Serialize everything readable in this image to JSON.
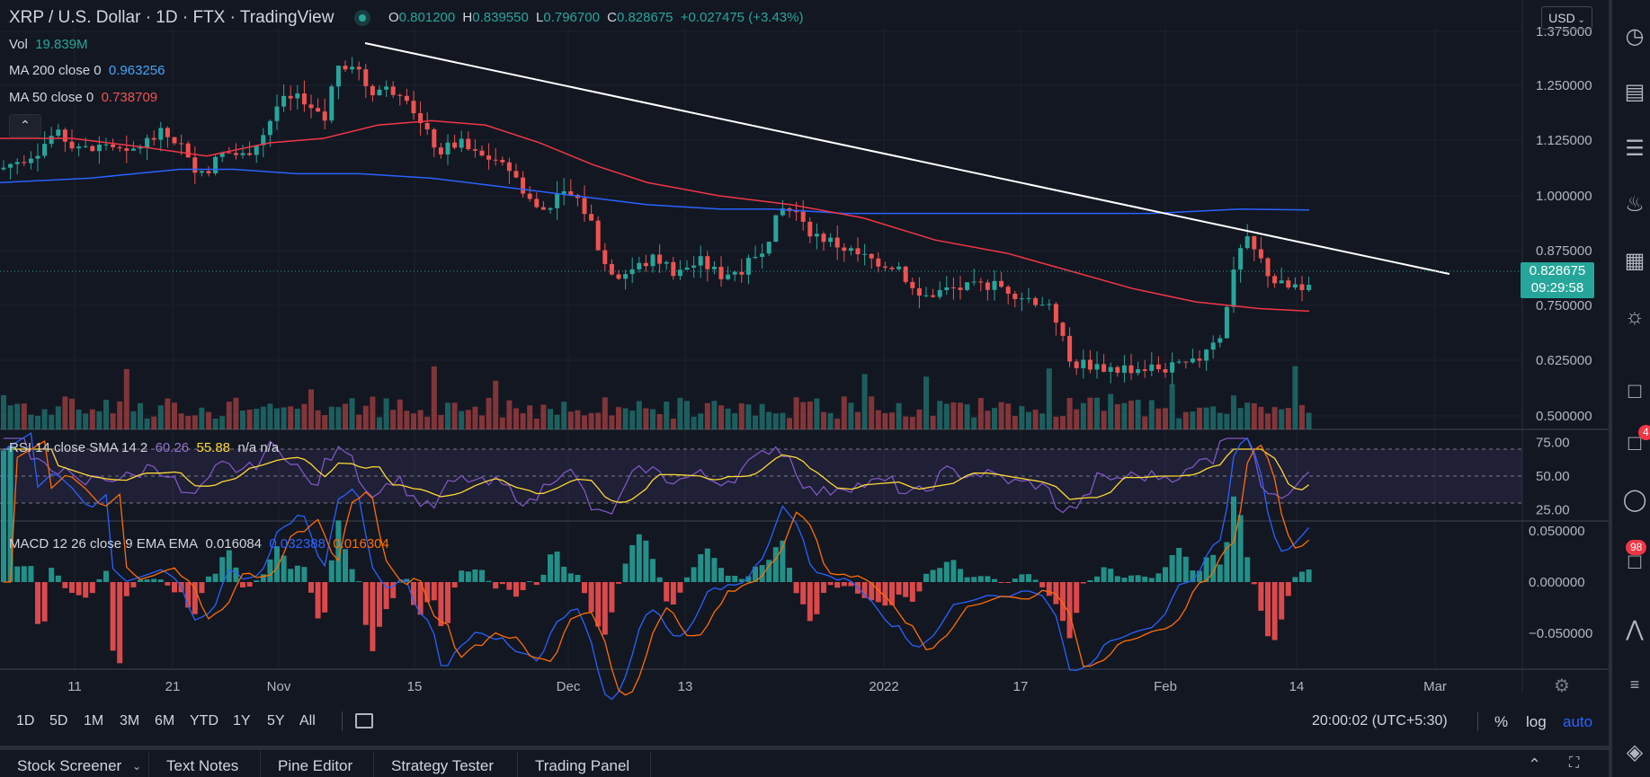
{
  "header": {
    "symbol_title": "XRP / U.S. Dollar · 1D · FTX · TradingView",
    "ohlc": {
      "o_label": "O",
      "o": "0.801200",
      "h_label": "H",
      "h": "0.839550",
      "l_label": "L",
      "l": "0.796700",
      "c_label": "C",
      "c": "0.828675",
      "change": "+0.027475 (+3.43%)"
    },
    "currency": "USD",
    "status_color": "#26a69a"
  },
  "legend": {
    "vol_label": "Vol",
    "vol_value": "19.839M",
    "ma200_label": "MA 200 close 0",
    "ma200_value": "0.963256",
    "ma200_color": "#2962ff",
    "ma50_label": "MA 50 close 0",
    "ma50_value": "0.738709",
    "ma50_color": "#f23645",
    "rsi_label": "RSI 14 close SMA 14 2",
    "rsi_value": "60.26",
    "rsi_sma_value": "55.88",
    "rsi_na": "n/a n/a",
    "macd_label": "MACD 12 26 close 9 EMA EMA",
    "macd_value": "0.016084",
    "macd_signal": "0.032388",
    "macd_hist": "0.016304"
  },
  "price_axis": {
    "ticks": [
      "1.375000",
      "1.250000",
      "1.125000",
      "1.000000",
      "0.875000",
      "0.750000",
      "0.625000",
      "0.500000"
    ],
    "current_price": "0.828675",
    "countdown": "09:29:58"
  },
  "rsi_axis": {
    "ticks": [
      "75.00",
      "50.00",
      "25.00"
    ]
  },
  "macd_axis": {
    "ticks": [
      "0.050000",
      "0.000000",
      "−0.050000"
    ]
  },
  "time_axis": {
    "ticks": [
      "11",
      "21",
      "Nov",
      "15",
      "Dec",
      "13",
      "2022",
      "17",
      "Feb",
      "14",
      "Mar"
    ]
  },
  "timeframes": [
    "1D",
    "5D",
    "1M",
    "3M",
    "6M",
    "YTD",
    "1Y",
    "5Y",
    "All"
  ],
  "bottom_bar": {
    "clock": "20:00:02 (UTC+5:30)",
    "percent": "%",
    "log": "log",
    "auto": "auto"
  },
  "bottom_tabs": [
    "Stock Screener",
    "Text Notes",
    "Pine Editor",
    "Strategy Tester",
    "Trading Panel"
  ],
  "right_sidebar": {
    "icons": [
      "alarm-clock-icon",
      "watchlist-icon",
      "data-window-icon",
      "hotlist-icon",
      "calendar-icon",
      "ideas-icon",
      "chat-icon",
      "notifications-icon",
      "help-icon",
      "messages-icon",
      "layers-icon"
    ],
    "badge_notifications": "4",
    "badge_messages": "98"
  },
  "colors": {
    "up": "#26a69a",
    "down": "#ef5350",
    "ma200": "#2962ff",
    "ma50": "#f23645",
    "trendline": "#ffffff",
    "rsi": "#7e57c2",
    "rsi_sma": "#fdd835",
    "macd": "#2962ff",
    "signal": "#ff6d00"
  }
}
